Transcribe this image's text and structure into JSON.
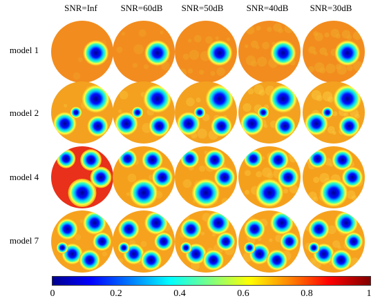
{
  "columns": [
    "SNR=Inf",
    "SNR=60dB",
    "SNR=50dB",
    "SNR=40dB",
    "SNR=30dB"
  ],
  "rows": [
    {
      "label": "model 1",
      "bg": "#F28C1E",
      "inclusions": 1
    },
    {
      "label": "model 2",
      "bg": "#F3A11F",
      "inclusions": 4
    },
    {
      "label": "model 4",
      "bg": "#F5A01C",
      "inclusions": 4
    },
    {
      "label": "model 7",
      "bg": "#F6A21E",
      "inclusions": 6
    }
  ],
  "colorbar": {
    "min": 0,
    "max": 1,
    "ticks": [
      "0",
      "0.2",
      "0.4",
      "0.6",
      "0.8",
      "1"
    ],
    "colormap": "jet"
  }
}
